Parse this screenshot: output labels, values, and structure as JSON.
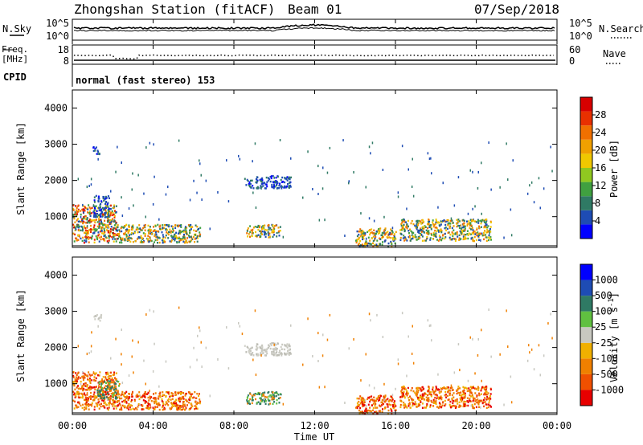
{
  "header": {
    "title": "Zhongshan Station (fitACF)",
    "beam": "Beam 01",
    "date": "07/Sep/2018"
  },
  "noise_panel": {
    "left_label": "N.Sky",
    "left_ticks": [
      "10^5",
      "10^0"
    ],
    "right_label": "N.Search",
    "right_ticks": [
      "10^5",
      "10^0"
    ]
  },
  "freq_panel": {
    "left_label_1": "Freq.",
    "left_label_2": "[MHz]",
    "left_ticks": [
      "18",
      "8"
    ],
    "right_label": "Nave",
    "right_ticks": [
      "60",
      "0"
    ]
  },
  "cpid_panel": {
    "label": "CPID",
    "text": "normal (fast stereo) 153"
  },
  "x_axis": {
    "label": "Time UT",
    "ticks": [
      "00:00",
      "04:00",
      "08:00",
      "12:00",
      "16:00",
      "20:00",
      "00:00"
    ]
  },
  "chart_data": [
    {
      "type": "heatmap",
      "title": "Power",
      "ylabel": "Slant Range [km]",
      "xlabel": "Time UT",
      "ylim": [
        150,
        4500
      ],
      "y_ticks": [
        "1000",
        "2000",
        "3000",
        "4000"
      ],
      "colorbar": {
        "label": "Power [dB]",
        "ticks": [
          "28",
          "24",
          "20",
          "16",
          "12",
          "8",
          "4"
        ],
        "range": [
          0,
          30
        ],
        "colors": [
          "#0000ff",
          "#1e4cb4",
          "#2f7a64",
          "#40a040",
          "#90c820",
          "#f0c800",
          "#f0a000",
          "#f07000",
          "#e83000",
          "#d80000"
        ]
      },
      "regions": [
        {
          "t0": 0.0,
          "t1": 2.2,
          "r0": 300,
          "r1": 1350,
          "level": "high"
        },
        {
          "t0": 2.2,
          "t1": 6.3,
          "r0": 300,
          "r1": 800,
          "level": "medium"
        },
        {
          "t0": 1.0,
          "t1": 1.4,
          "r0": 2750,
          "r1": 2950,
          "level": "low"
        },
        {
          "t0": 1.0,
          "t1": 1.8,
          "r0": 1000,
          "r1": 1600,
          "level": "low"
        },
        {
          "t0": 8.5,
          "t1": 10.8,
          "r0": 1800,
          "r1": 2150,
          "level": "low"
        },
        {
          "t0": 8.6,
          "t1": 10.3,
          "r0": 450,
          "r1": 800,
          "level": "medium"
        },
        {
          "t0": 14.0,
          "t1": 16.0,
          "r0": 200,
          "r1": 700,
          "level": "medium"
        },
        {
          "t0": 16.2,
          "t1": 20.7,
          "r0": 350,
          "r1": 950,
          "level": "medium"
        }
      ]
    },
    {
      "type": "heatmap",
      "title": "Velocity",
      "ylabel": "Slant Range [km]",
      "xlabel": "Time UT",
      "ylim": [
        150,
        4500
      ],
      "y_ticks": [
        "1000",
        "2000",
        "3000",
        "4000"
      ],
      "colorbar": {
        "label": "Velocity [m s^-1]",
        "ticks": [
          "1000",
          "500",
          "100",
          "25",
          "-25",
          "-100",
          "-500",
          "-1000"
        ],
        "range": [
          -1000,
          1000
        ],
        "colors": [
          "#e80000",
          "#f05000",
          "#f08000",
          "#f0b000",
          "#c8c8c0",
          "#60c040",
          "#2f7a64",
          "#1e4cb4",
          "#0000ff"
        ]
      },
      "regions": [
        {
          "t0": 0.0,
          "t1": 2.2,
          "r0": 300,
          "r1": 1350,
          "level": "negative"
        },
        {
          "t0": 1.2,
          "t1": 2.3,
          "r0": 600,
          "r1": 1100,
          "level": "positive"
        },
        {
          "t0": 2.2,
          "t1": 6.3,
          "r0": 300,
          "r1": 800,
          "level": "negative"
        },
        {
          "t0": 1.0,
          "t1": 1.4,
          "r0": 2750,
          "r1": 2950,
          "level": "near-zero"
        },
        {
          "t0": 8.5,
          "t1": 10.8,
          "r0": 1800,
          "r1": 2150,
          "level": "near-zero"
        },
        {
          "t0": 8.6,
          "t1": 10.3,
          "r0": 450,
          "r1": 800,
          "level": "positive"
        },
        {
          "t0": 14.0,
          "t1": 16.0,
          "r0": 200,
          "r1": 700,
          "level": "negative"
        },
        {
          "t0": 16.2,
          "t1": 20.7,
          "r0": 350,
          "r1": 950,
          "level": "negative"
        }
      ]
    }
  ]
}
